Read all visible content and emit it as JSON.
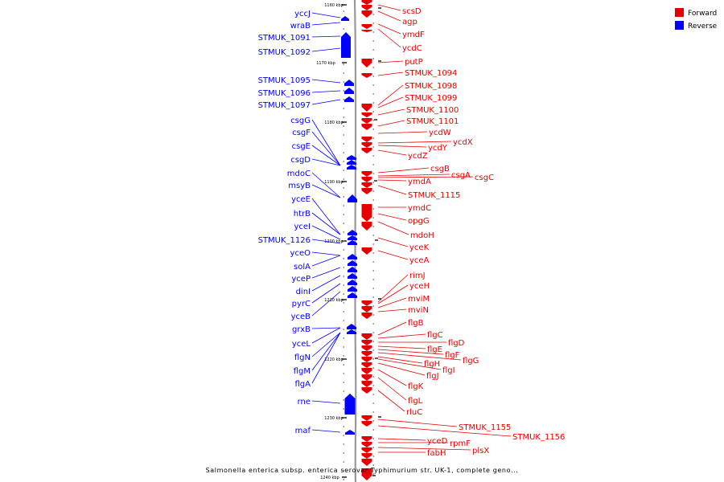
{
  "caption": "Salmonella enterica subsp. enterica serovar Typhimurium str. UK-1, complete geno...",
  "colors": {
    "forward": "#e40000",
    "reverse": "#0000ff",
    "axis": "#888888"
  },
  "legend": [
    {
      "label": "Forward",
      "strand": "forward"
    },
    {
      "label": "Reverse",
      "strand": "reverse"
    }
  ],
  "scale_labels": [
    "1160 kbp",
    "1170 kbp",
    "1180 kbp",
    "1190 kbp",
    "1200 kbp",
    "1210 kbp",
    "1220 kbp",
    "1230 kbp",
    "1240 kbp"
  ],
  "reverse_genes": [
    "yccJ",
    "wraB",
    "STMUK_1091",
    "STMUK_1092",
    "STMUK_1095",
    "STMUK_1096",
    "STMUK_1097",
    "csgG",
    "csgF",
    "csgE",
    "csgD",
    "mdoC",
    "msyB",
    "yceE",
    "htrB",
    "yceI",
    "STMUK_1126",
    "yceO",
    "solA",
    "yceP",
    "dinI",
    "pyrC",
    "yceB",
    "grxB",
    "yceL",
    "flgN",
    "flgM",
    "flgA",
    "rne",
    "maf"
  ],
  "forward_genes": [
    "scsD",
    "agp",
    "ymdF",
    "ycdC",
    "putP",
    "STMUK_1094",
    "STMUK_1098",
    "STMUK_1099",
    "STMUK_1100",
    "STMUK_1101",
    "ycdW",
    "ycdX",
    "ycdY",
    "ycdZ",
    "csgB",
    "csgA",
    "csgC",
    "ymdA",
    "STMUK_1115",
    "ymdC",
    "opgG",
    "mdoH",
    "yceK",
    "yceA",
    "rimJ",
    "yceH",
    "mviM",
    "mviN",
    "flgB",
    "flgC",
    "flgD",
    "flgE",
    "flgF",
    "flgG",
    "flgH",
    "flgI",
    "flgJ",
    "flgK",
    "flgL",
    "rluC",
    "STMUK_1155",
    "STMUK_1156",
    "yceD",
    "rpmF",
    "plsX",
    "fabH"
  ]
}
